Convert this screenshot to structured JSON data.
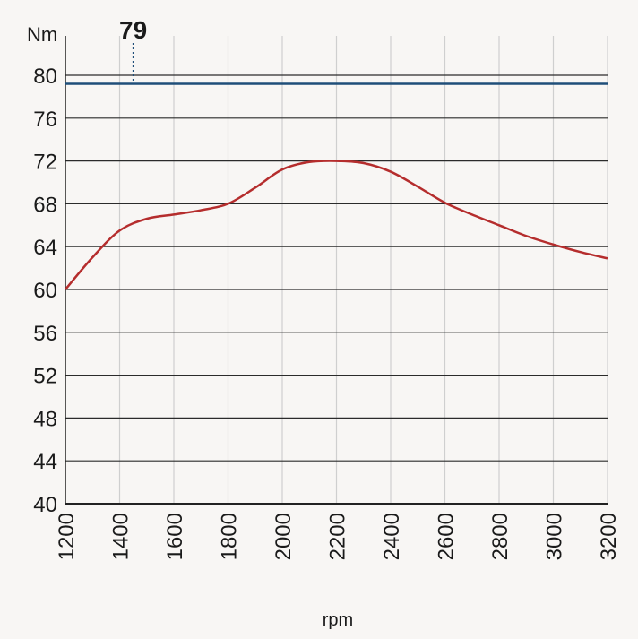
{
  "chart_data": {
    "type": "line",
    "ylabel": "Nm",
    "xlabel": "rpm",
    "xlim": [
      1200,
      3200
    ],
    "ylim": [
      40,
      80
    ],
    "x_ticks": [
      1200,
      1400,
      1600,
      1800,
      2000,
      2200,
      2400,
      2600,
      2800,
      3000,
      3200
    ],
    "y_ticks": [
      40,
      44,
      48,
      52,
      56,
      60,
      64,
      68,
      72,
      76,
      80
    ],
    "grid": true,
    "series": [
      {
        "color": "#b52d2d",
        "x": [
          1200,
          1300,
          1400,
          1500,
          1600,
          1700,
          1800,
          1900,
          2000,
          2100,
          2200,
          2300,
          2400,
          2500,
          2600,
          2700,
          2800,
          2900,
          3000,
          3100,
          3200
        ],
        "y": [
          60.0,
          63.0,
          65.5,
          66.6,
          67.0,
          67.4,
          68.0,
          69.5,
          71.2,
          71.9,
          72.0,
          71.8,
          71.0,
          69.6,
          68.1,
          67.0,
          66.0,
          65.0,
          64.2,
          63.5,
          62.9
        ]
      }
    ],
    "reference_line": {
      "y": 79.2,
      "color": "#1f4e79"
    },
    "annotation": {
      "text": "79",
      "x": 1450
    }
  }
}
